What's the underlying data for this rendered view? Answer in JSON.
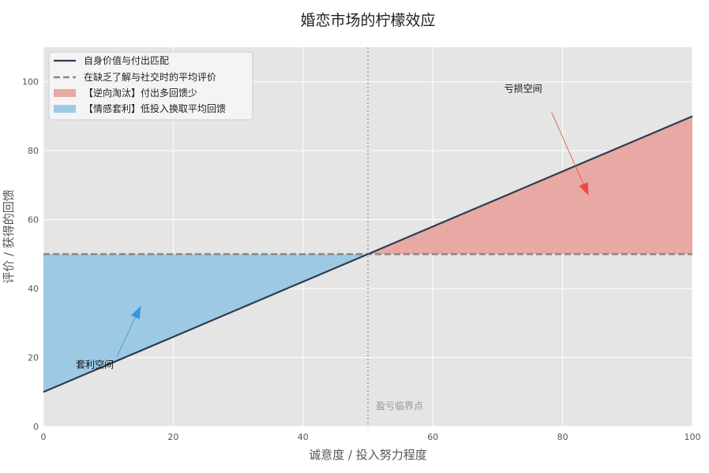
{
  "chart_data": {
    "type": "line",
    "title": "婚恋市场的柠檬效应",
    "xlabel": "诚意度 / 投入努力程度",
    "ylabel": "评价 / 获得的回馈",
    "xlim": [
      0,
      100
    ],
    "ylim": [
      0,
      110
    ],
    "x_ticks": [
      0,
      20,
      40,
      60,
      80,
      100
    ],
    "y_ticks": [
      0,
      20,
      40,
      60,
      80,
      100
    ],
    "grid": true,
    "legend_position": "top-left",
    "series": [
      {
        "name": "自身价值与付出匹配",
        "style": "solid",
        "color": "#2c3e50",
        "x": [
          0,
          100
        ],
        "y": [
          10,
          90
        ]
      },
      {
        "name": "在缺乏了解与社交时的平均评价",
        "style": "dashed",
        "color": "#888888",
        "x": [
          0,
          100
        ],
        "y": [
          50,
          50
        ]
      }
    ],
    "areas": [
      {
        "name": "【逆向淘汰】付出多回馈少",
        "color": "#e8a8a3",
        "x_range": [
          50,
          100
        ]
      },
      {
        "name": "【情感套利】低投入换取平均回馈",
        "color": "#9ec9e5",
        "x_range": [
          0,
          50
        ]
      }
    ],
    "vline": {
      "x": 50,
      "label": "盈亏临界点"
    },
    "annotations": [
      {
        "text": "亏损空间",
        "text_xy": [
          71,
          98
        ],
        "arrow_to": [
          84,
          67
        ],
        "color": "#e74c3c"
      },
      {
        "text": "套利空间",
        "text_xy": [
          5,
          18
        ],
        "arrow_to": [
          15,
          35
        ],
        "color": "#3498db"
      }
    ]
  }
}
